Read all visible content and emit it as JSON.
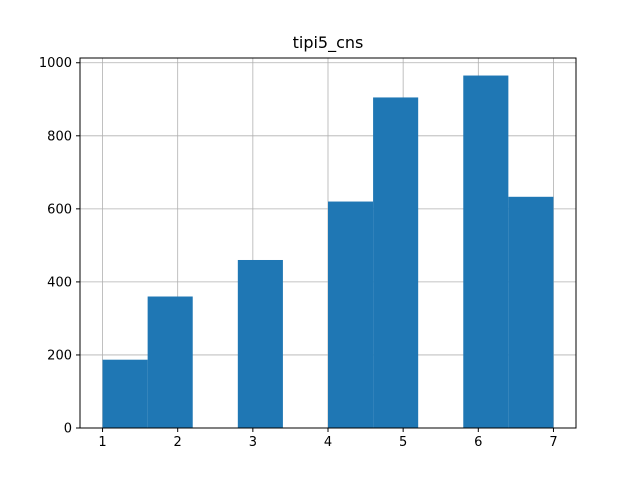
{
  "chart_data": {
    "type": "bar",
    "title": "tipi5_cns",
    "xlabel": "",
    "ylabel": "",
    "bins": [
      {
        "x0": 1.0,
        "x1": 1.6,
        "value": 187
      },
      {
        "x0": 1.6,
        "x1": 2.2,
        "value": 360
      },
      {
        "x0": 2.2,
        "x1": 2.8,
        "value": 0
      },
      {
        "x0": 2.8,
        "x1": 3.4,
        "value": 460
      },
      {
        "x0": 3.4,
        "x1": 4.0,
        "value": 0
      },
      {
        "x0": 4.0,
        "x1": 4.6,
        "value": 620
      },
      {
        "x0": 4.6,
        "x1": 5.2,
        "value": 905
      },
      {
        "x0": 5.2,
        "x1": 5.8,
        "value": 0
      },
      {
        "x0": 5.8,
        "x1": 6.4,
        "value": 965
      },
      {
        "x0": 6.4,
        "x1": 7.0,
        "value": 633
      }
    ],
    "xlim": [
      0.7,
      7.3
    ],
    "ylim": [
      0,
      1013
    ],
    "xticks": [
      1,
      2,
      3,
      4,
      5,
      6,
      7
    ],
    "yticks": [
      0,
      200,
      400,
      600,
      800,
      1000
    ],
    "grid": true,
    "bar_color": "#1f77b4",
    "grid_color": "#b0b0b0"
  }
}
